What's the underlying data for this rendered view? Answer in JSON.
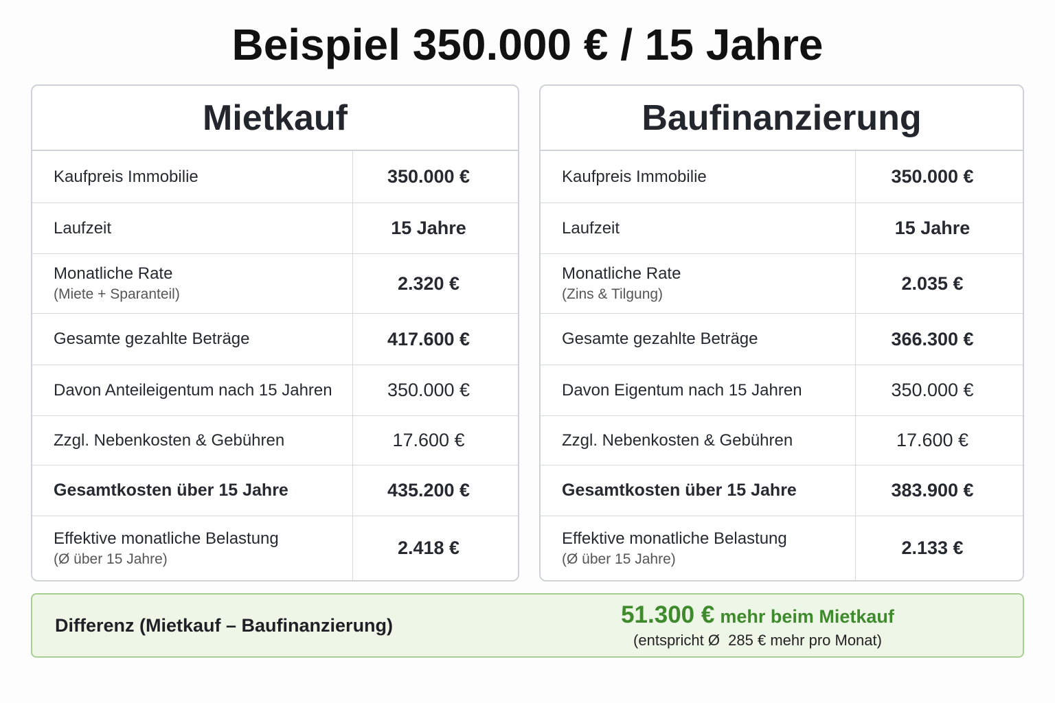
{
  "title": "Beispiel 350.000 € / 15 Jahre",
  "tables": [
    {
      "heading": "Mietkauf",
      "rows": [
        {
          "label": "Kaufpreis Immobilie",
          "value": "350.000 €"
        },
        {
          "label": "Laufzeit",
          "value": "15 Jahre"
        },
        {
          "label": "Monatliche Rate",
          "sublabel": "(Miete + Sparanteil)",
          "value": "2.320 €"
        },
        {
          "label": "Gesamte gezahlte Beträge",
          "value": "417.600 €"
        },
        {
          "label": "Davon Anteileigentum nach 15 Jahren",
          "value": "350.000 €"
        },
        {
          "label": "Zzgl. Nebenkosten & Gebühren",
          "value": "17.600 €"
        },
        {
          "label": "Gesamtkosten über 15 Jahre",
          "value": "435.200 €"
        },
        {
          "label": "Effektive monatliche Belastung",
          "sublabel": "(Ø über 15 Jahre)",
          "value": "2.418 €"
        }
      ]
    },
    {
      "heading": "Baufinanzierung",
      "rows": [
        {
          "label": "Kaufpreis Immobilie",
          "value": "350.000 €"
        },
        {
          "label": "Laufzeit",
          "value": "15 Jahre"
        },
        {
          "label": "Monatliche Rate",
          "sublabel": "(Zins & Tilgung)",
          "value": "2.035 €"
        },
        {
          "label": "Gesamte gezahlte Beträge",
          "value": "366.300 €"
        },
        {
          "label": "Davon Eigentum nach 15 Jahren",
          "value": "350.000 €"
        },
        {
          "label": "Zzgl. Nebenkosten & Gebühren",
          "value": "17.600 €"
        },
        {
          "label": "Gesamtkosten über 15 Jahre",
          "value": "383.900 €"
        },
        {
          "label": "Effektive monatliche Belastung",
          "sublabel": "(Ø über 15 Jahre)",
          "value": "2.133 €"
        }
      ]
    }
  ],
  "summary": {
    "label": "Differenz (Mietkauf – Baufinanzierung)",
    "amount": "51.300 €",
    "note": "mehr beim Mietkauf",
    "detail": "(entspricht Ø  285 € mehr pro Monat)"
  }
}
